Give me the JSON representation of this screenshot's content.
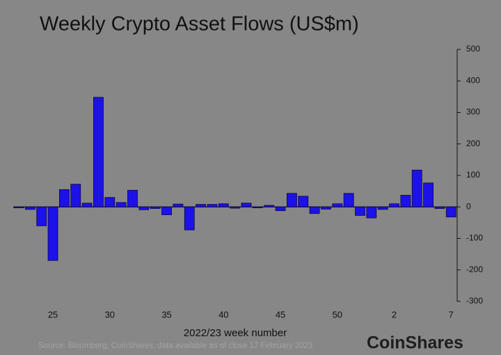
{
  "chart_data": {
    "type": "bar",
    "title": "Weekly Crypto Asset Flows (US$m)",
    "x_label": "2022/23 week number",
    "source": "Source: Bloomberg, CoinShares, data available as of close 17 February 2023",
    "brand": "CoinShares",
    "categories": [
      null,
      null,
      null,
      "25",
      null,
      null,
      null,
      null,
      "30",
      null,
      null,
      null,
      null,
      "35",
      null,
      null,
      null,
      null,
      "40",
      null,
      null,
      null,
      null,
      "45",
      null,
      null,
      null,
      null,
      "50",
      null,
      null,
      null,
      null,
      "2",
      null,
      null,
      null,
      null,
      "7"
    ],
    "values": [
      -3,
      -8,
      -60,
      -170,
      55,
      72,
      12,
      348,
      30,
      14,
      53,
      -9,
      -5,
      -25,
      9,
      -73,
      8,
      8,
      10,
      -4,
      12,
      -3,
      5,
      -12,
      43,
      34,
      -21,
      -7,
      10,
      43,
      -27,
      -35,
      -8,
      10,
      37,
      117,
      76,
      -5,
      -32
    ],
    "color": "#1d12e6",
    "ylim": [
      -300,
      500
    ],
    "yticks": [
      -300,
      -200,
      -100,
      0,
      100,
      200,
      300,
      400,
      500
    ],
    "y_axis_side": "right"
  }
}
